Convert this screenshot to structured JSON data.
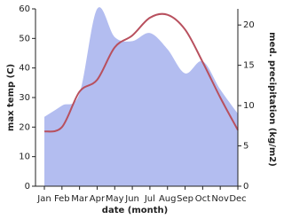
{
  "chart_data": {
    "type": "line_area",
    "x_label": "date (month)",
    "y_label": "max temp (C)",
    "y2_label": "med. precipitation (kg/m2)",
    "categories": [
      "Jan",
      "Feb",
      "Mar",
      "Apr",
      "May",
      "Jun",
      "Jul",
      "Aug",
      "Sep",
      "Oct",
      "Nov",
      "Dec"
    ],
    "series": [
      {
        "name": "med. precipitation",
        "type": "area",
        "axis": "y2",
        "color": "#b3bdf0",
        "values": [
          8.6,
          10,
          11.5,
          22,
          18.5,
          18,
          19,
          17,
          14,
          15.5,
          12,
          9
        ]
      },
      {
        "name": "max temp",
        "type": "line",
        "color": "#b8505e",
        "values": [
          18.5,
          20,
          32,
          36,
          47,
          51,
          57,
          58,
          53,
          42,
          30,
          19
        ]
      }
    ],
    "ylim": [
      0,
      60
    ],
    "yticks": [
      0,
      10,
      20,
      30,
      40,
      50,
      60
    ],
    "y2lim": [
      0,
      22
    ],
    "y2ticks": [
      0,
      5,
      10,
      15,
      20
    ]
  }
}
